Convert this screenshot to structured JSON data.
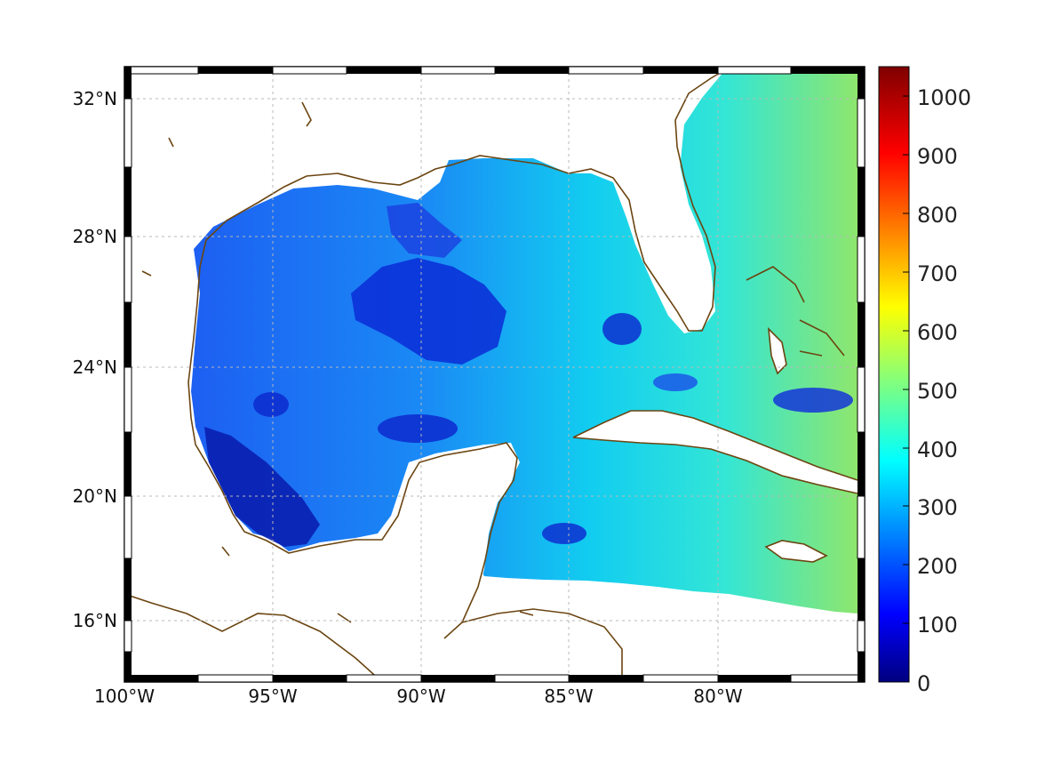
{
  "map": {
    "lat_labels": [
      "32°N",
      "28°N",
      "24°N",
      "20°N",
      "16°N"
    ],
    "lon_labels": [
      "100°W",
      "95°W",
      "90°W",
      "85°W",
      "80°W"
    ],
    "extent": {
      "lon_min": -100,
      "lon_max": -75,
      "lat_min": 14.2,
      "lat_max": 33
    },
    "grid": true,
    "coastline_color": "#6b4511",
    "colormap": "jet"
  },
  "colorbar": {
    "range": [
      0,
      1050
    ],
    "ticks": [
      "0",
      "100",
      "200",
      "300",
      "400",
      "500",
      "600",
      "700",
      "800",
      "900",
      "1000"
    ]
  }
}
